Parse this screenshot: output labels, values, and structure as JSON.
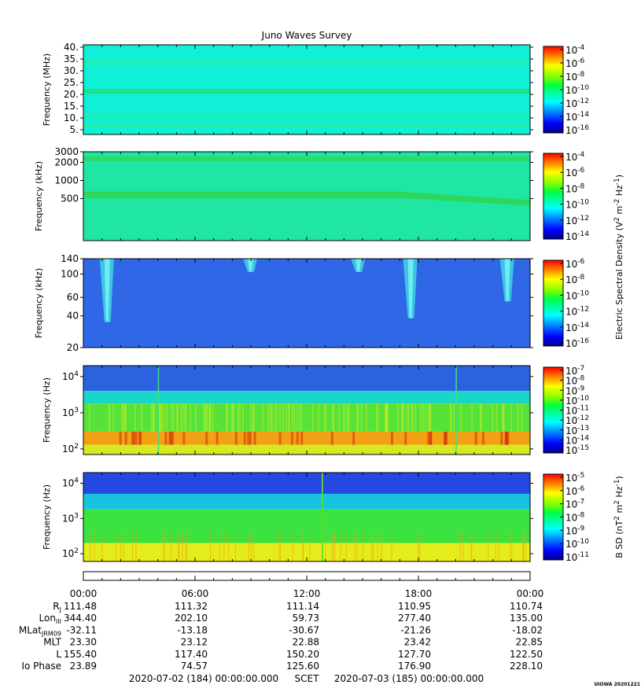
{
  "title": "Juno Waves Survey",
  "chart_data": [
    {
      "type": "heatmap",
      "panel": "waves-hfr-high",
      "ylabel": "Frequency (MHz)",
      "yscale": "linear",
      "ylim": [
        3,
        41
      ],
      "yticks": [
        {
          "v": 5,
          "label": "5."
        },
        {
          "v": 10,
          "label": "10."
        },
        {
          "v": 15,
          "label": "15."
        },
        {
          "v": 20,
          "label": "20."
        },
        {
          "v": 25,
          "label": "25."
        },
        {
          "v": 30,
          "label": "30."
        },
        {
          "v": 35,
          "label": "35."
        },
        {
          "v": 40,
          "label": "40."
        }
      ],
      "features": [
        {
          "kind": "band",
          "y": 21.3,
          "color": "#20e07a"
        },
        {
          "kind": "band",
          "y": 33.5,
          "color": "#22ecb0"
        },
        {
          "kind": "band",
          "y": 11,
          "color": "#22ecb0"
        },
        {
          "kind": "band",
          "y": 7,
          "color": "#22ecb0"
        }
      ],
      "background": "#10f0d8",
      "colorbar": {
        "ticks": [
          {
            "exp": "-4"
          },
          {
            "exp": "-6"
          },
          {
            "exp": "-8"
          },
          {
            "exp": "-10"
          },
          {
            "exp": "-12"
          },
          {
            "exp": "-14"
          },
          {
            "exp": "-16"
          }
        ]
      }
    },
    {
      "type": "heatmap",
      "panel": "waves-hfr-low",
      "ylabel": "Frequency (kHz)",
      "yscale": "log",
      "ylim": [
        100,
        3000
      ],
      "yticks": [
        {
          "v": 500,
          "label": "500"
        },
        {
          "v": 1000,
          "label": "1000"
        },
        {
          "v": 2000,
          "label": "2000"
        },
        {
          "v": 3000,
          "label": "3000"
        }
      ],
      "features": [
        {
          "kind": "band",
          "y": 2300,
          "color": "#30d860"
        },
        {
          "kind": "drift",
          "y0": 580,
          "y1": 420,
          "color": "#2ed65a"
        }
      ],
      "background": "#1fe6a2",
      "colorbar": {
        "ticks": [
          {
            "exp": "-4"
          },
          {
            "exp": "-6"
          },
          {
            "exp": "-8"
          },
          {
            "exp": "-10"
          },
          {
            "exp": "-12"
          },
          {
            "exp": "-14"
          }
        ]
      },
      "colorbar_label": "Electric Spectral Density (V"
    },
    {
      "type": "heatmap",
      "panel": "waves-lfr-high",
      "ylabel": "Frequency (kHz)",
      "yscale": "log",
      "ylim": [
        20,
        140
      ],
      "yticks": [
        {
          "v": 20,
          "label": "20"
        },
        {
          "v": 40,
          "label": "40"
        },
        {
          "v": 60,
          "label": "60"
        },
        {
          "v": 100,
          "label": "100"
        },
        {
          "v": 140,
          "label": "140"
        }
      ],
      "features": [
        {
          "kind": "burst",
          "t": 1.3,
          "ytop": 140,
          "ybot": 35
        },
        {
          "kind": "burst",
          "t": 17.6,
          "ytop": 140,
          "ybot": 38
        },
        {
          "kind": "burst",
          "t": 22.8,
          "ytop": 140,
          "ybot": 55
        },
        {
          "kind": "burst",
          "t": 9.0,
          "ytop": 140,
          "ybot": 105
        },
        {
          "kind": "burst",
          "t": 14.8,
          "ytop": 140,
          "ybot": 105
        }
      ],
      "background": "#2f67e6",
      "colorbar": {
        "ticks": [
          {
            "exp": "-6"
          },
          {
            "exp": "-8"
          },
          {
            "exp": "-10"
          },
          {
            "exp": "-12"
          },
          {
            "exp": "-14"
          },
          {
            "exp": "-16"
          }
        ]
      }
    },
    {
      "type": "heatmap",
      "panel": "waves-lfr-low",
      "ylabel": "Frequency (Hz)",
      "yscale": "log",
      "ylim": [
        70,
        20000
      ],
      "yticks": [
        {
          "v": 100,
          "label": "10",
          "exp": "2"
        },
        {
          "v": 1000,
          "label": "10",
          "exp": "3"
        },
        {
          "v": 10000,
          "label": "10",
          "exp": "4"
        }
      ],
      "features": [
        {
          "kind": "layer",
          "from": 20000,
          "to": 4000,
          "color": "#2a62e0"
        },
        {
          "kind": "layer",
          "from": 4000,
          "to": 1800,
          "color": "#19d6c8"
        },
        {
          "kind": "layer",
          "from": 1800,
          "to": 300,
          "color": "#57e23a"
        },
        {
          "kind": "layer",
          "from": 300,
          "to": 130,
          "color": "#f1a212"
        },
        {
          "kind": "layer",
          "from": 130,
          "to": 70,
          "color": "#d8e820"
        }
      ],
      "colorbar": {
        "ticks": [
          {
            "exp": "-7"
          },
          {
            "exp": "-8"
          },
          {
            "exp": "-9"
          },
          {
            "exp": "-10"
          },
          {
            "exp": "-11"
          },
          {
            "exp": "-12"
          },
          {
            "exp": "-13"
          },
          {
            "exp": "-14"
          },
          {
            "exp": "-15"
          }
        ]
      }
    },
    {
      "type": "heatmap",
      "panel": "magnetic",
      "ylabel": "Frequency (Hz)",
      "yscale": "log",
      "ylim": [
        60,
        20000
      ],
      "yticks": [
        {
          "v": 100,
          "label": "10",
          "exp": "2"
        },
        {
          "v": 1000,
          "label": "10",
          "exp": "3"
        },
        {
          "v": 10000,
          "label": "10",
          "exp": "4"
        }
      ],
      "features": [
        {
          "kind": "layer",
          "from": 20000,
          "to": 5000,
          "color": "#2448e0"
        },
        {
          "kind": "layer",
          "from": 5000,
          "to": 1800,
          "color": "#16c4e0"
        },
        {
          "kind": "layer",
          "from": 1800,
          "to": 200,
          "color": "#3ce240"
        },
        {
          "kind": "layer",
          "from": 200,
          "to": 60,
          "color": "#e4ec1c"
        }
      ],
      "colorbar": {
        "ticks": [
          {
            "exp": "-5"
          },
          {
            "exp": "-6"
          },
          {
            "exp": "-7"
          },
          {
            "exp": "-8"
          },
          {
            "exp": "-9"
          },
          {
            "exp": "-10"
          },
          {
            "exp": "-11"
          }
        ]
      },
      "colorbar_label": "B SD (nT"
    }
  ],
  "time_axis": {
    "range_hours": [
      0,
      24
    ],
    "tick_labels": [
      "00:00",
      "06:00",
      "12:00",
      "18:00",
      "00:00"
    ]
  },
  "ephemeris": [
    {
      "label": "R",
      "sub": "J",
      "values": [
        "111.48",
        "111.32",
        "111.14",
        "110.95",
        "110.74"
      ]
    },
    {
      "label": "Lon",
      "sub": "III",
      "values": [
        "344.40",
        "202.10",
        "59.73",
        "277.40",
        "135.00"
      ]
    },
    {
      "label": "MLat",
      "sub": "JRM09",
      "values": [
        "-32.11",
        "-13.18",
        "-30.67",
        "-21.26",
        "-18.02"
      ]
    },
    {
      "label": "MLT",
      "sub": "",
      "values": [
        "23.30",
        "23.12",
        "22.88",
        "23.42",
        "22.85"
      ]
    },
    {
      "label": "L",
      "sub": "",
      "values": [
        "155.40",
        "117.40",
        "150.20",
        "127.70",
        "122.50"
      ]
    },
    {
      "label": "Io Phase",
      "sub": "",
      "values": [
        "23.89",
        "74.57",
        "125.60",
        "176.90",
        "228.10"
      ]
    }
  ],
  "footer": {
    "start": "2020-07-02 (184) 00:00:00.000",
    "scet": "SCET",
    "end": "2020-07-03 (185) 00:00:00.000",
    "stamp": "UIOWA 20201221"
  }
}
